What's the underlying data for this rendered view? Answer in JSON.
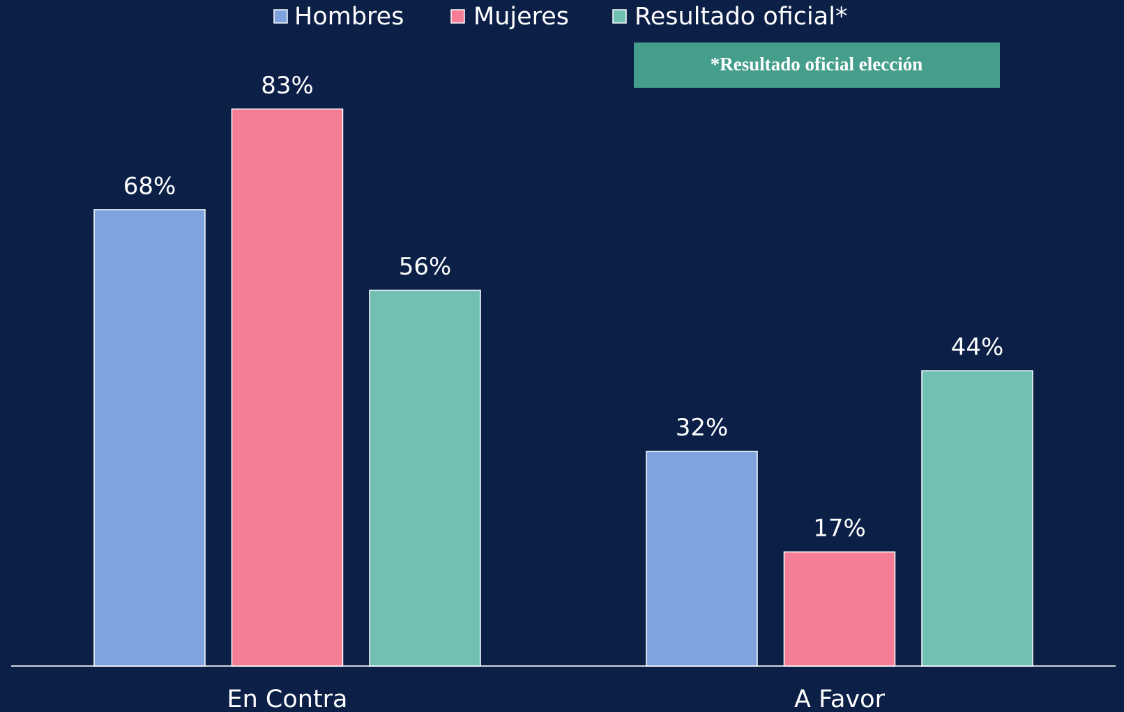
{
  "chart_data": {
    "type": "bar",
    "categories": [
      "En Contra",
      "A Favor"
    ],
    "series": [
      {
        "name": "Hombres",
        "color": "#7fa3de",
        "values": [
          68,
          32
        ],
        "value_labels": [
          "68%",
          "32%"
        ]
      },
      {
        "name": "Mujeres",
        "color": "#f57d96",
        "values": [
          83,
          17
        ],
        "value_labels": [
          "83%",
          "17%"
        ]
      },
      {
        "name": "Resultado oficial*",
        "color": "#72c0b3",
        "values": [
          56,
          44
        ],
        "value_labels": [
          "56%",
          "44%"
        ]
      }
    ],
    "annotation": "*Resultado oficial elección",
    "annotation_color": "#459e8c",
    "ylim": [
      0,
      90
    ],
    "legend": "top"
  }
}
